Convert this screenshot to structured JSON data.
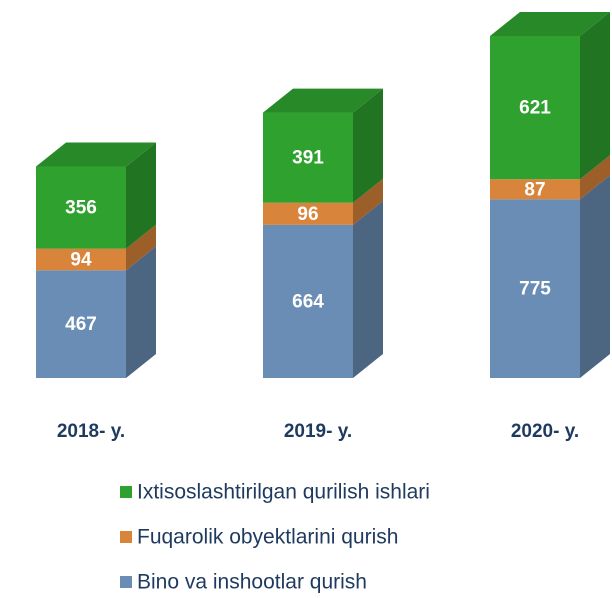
{
  "chart_data": {
    "type": "bar3d-stacked",
    "categories": [
      "2018- y.",
      "2019- y.",
      "2020- y."
    ],
    "series": [
      {
        "name": "Bino va inshootlar qurish",
        "color": "#6a8db5",
        "values": [
          467,
          664,
          775
        ]
      },
      {
        "name": "Fuqarolik obyektlarini qurish",
        "color": "#d8843a",
        "values": [
          94,
          96,
          87
        ]
      },
      {
        "name": "Ixtisoslashtirilgan qurilish ishlari",
        "color": "#2ea12e",
        "values": [
          356,
          391,
          621
        ]
      }
    ]
  }
}
